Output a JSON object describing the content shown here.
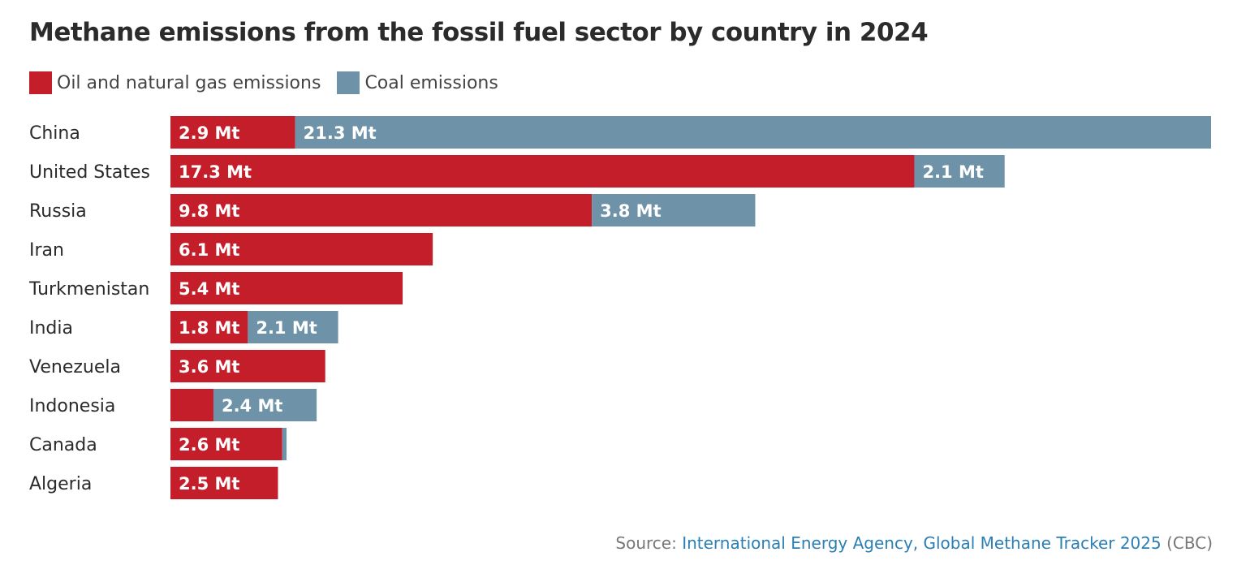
{
  "title": "Methane emissions from the fossil fuel sector by country in 2024",
  "legend": {
    "oil_gas": "Oil and natural gas emissions",
    "coal": "Coal emissions"
  },
  "colors": {
    "oil_gas": "#c41e2a",
    "coal": "#6e93a8"
  },
  "source": {
    "prefix": "Source: ",
    "link": "International Energy Agency, Global Methane Tracker 2025",
    "suffix": " (CBC)"
  },
  "chart_data": {
    "type": "bar",
    "orientation": "horizontal",
    "stacked": true,
    "unit": "Mt",
    "categories": [
      "China",
      "United States",
      "Russia",
      "Iran",
      "Turkmenistan",
      "India",
      "Venezuela",
      "Indonesia",
      "Canada",
      "Algeria"
    ],
    "series": [
      {
        "name": "Oil and natural gas emissions",
        "key": "oil_gas",
        "values": [
          2.9,
          17.3,
          9.8,
          6.1,
          5.4,
          1.8,
          3.6,
          1.0,
          2.6,
          2.5
        ],
        "labels": [
          "2.9 Mt",
          "17.3 Mt",
          "9.8 Mt",
          "6.1 Mt",
          "5.4 Mt",
          "1.8 Mt",
          "3.6 Mt",
          "",
          "2.6 Mt",
          "2.5 Mt"
        ]
      },
      {
        "name": "Coal emissions",
        "key": "coal",
        "values": [
          21.3,
          2.1,
          3.8,
          0,
          0,
          2.1,
          0,
          2.4,
          0.1,
          0
        ],
        "labels": [
          "21.3 Mt",
          "2.1 Mt",
          "3.8 Mt",
          "",
          "",
          "2.1 Mt",
          "",
          "2.4 Mt",
          "",
          ""
        ]
      }
    ],
    "xlim": [
      0,
      24.2
    ],
    "grid": false,
    "legend_position": "top-left"
  }
}
